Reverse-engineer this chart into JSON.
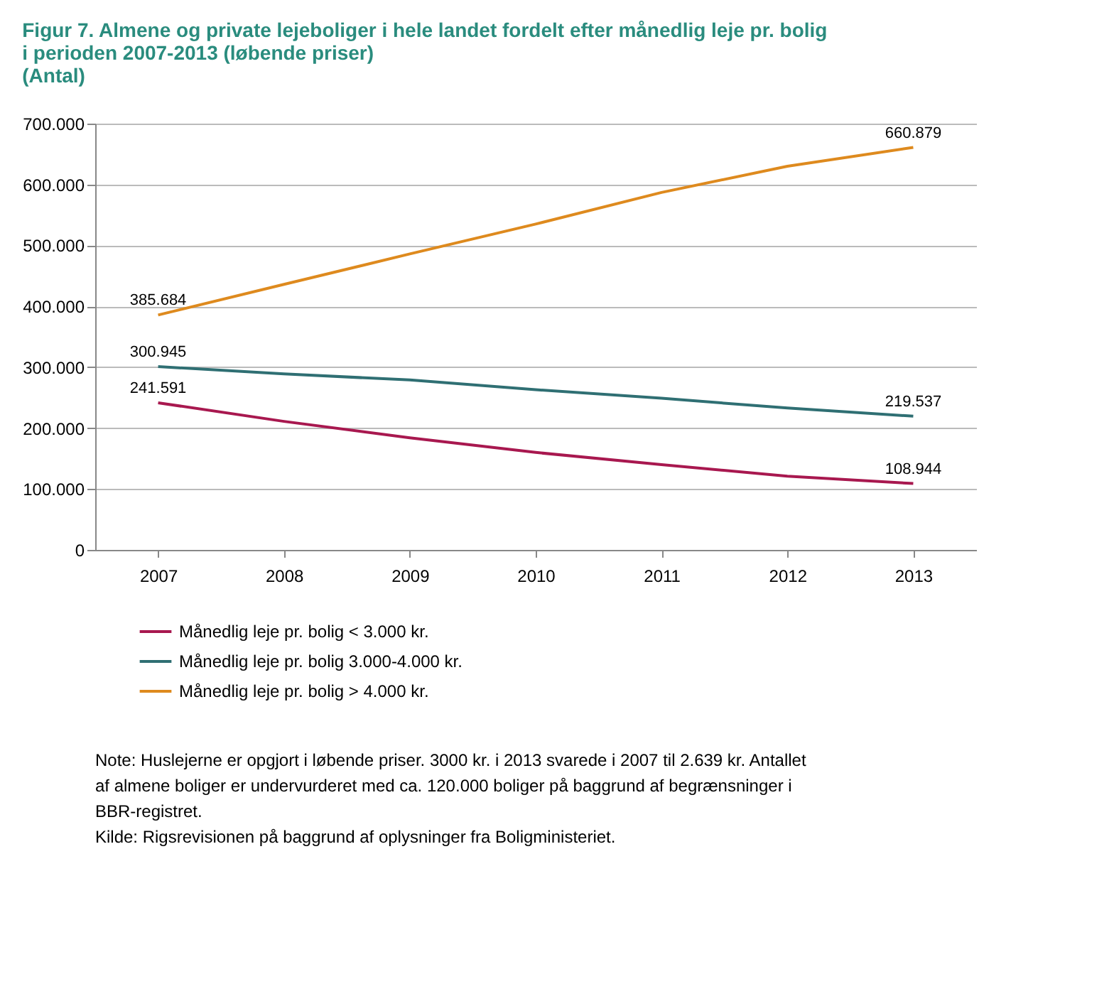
{
  "chart_data": {
    "type": "line",
    "title": [
      "Figur 7. Almene og private lejeboliger i hele landet fordelt efter månedlig leje pr. bolig",
      "i perioden 2007-2013 (løbende priser)",
      "(Antal)"
    ],
    "categories": [
      "2007",
      "2008",
      "2009",
      "2010",
      "2011",
      "2012",
      "2013"
    ],
    "series": [
      {
        "name": "Månedlig leje pr. bolig < 3.000 kr.",
        "color": "#a8184f",
        "values": [
          241591,
          211000,
          184000,
          160000,
          140000,
          121000,
          108944
        ],
        "value_labels": [
          "241.591",
          null,
          null,
          null,
          null,
          null,
          "108.944"
        ]
      },
      {
        "name": "Månedlig leje pr. bolig 3.000-4.000 kr.",
        "color": "#2f6f73",
        "values": [
          300945,
          289000,
          279000,
          263000,
          249000,
          233000,
          219537
        ],
        "value_labels": [
          "300.945",
          null,
          null,
          null,
          null,
          null,
          "219.537"
        ]
      },
      {
        "name": "Månedlig leje pr. bolig > 4.000 kr.",
        "color": "#de8a1e",
        "values": [
          385684,
          436000,
          486000,
          535000,
          587000,
          630000,
          660879
        ],
        "value_labels": [
          "385.684",
          null,
          null,
          null,
          null,
          null,
          "660.879"
        ]
      }
    ],
    "ylim": [
      0,
      700000
    ],
    "yticks": [
      {
        "value": 0,
        "label": "0"
      },
      {
        "value": 100000,
        "label": "100.000"
      },
      {
        "value": 200000,
        "label": "200.000"
      },
      {
        "value": 300000,
        "label": "300.000"
      },
      {
        "value": 400000,
        "label": "400.000"
      },
      {
        "value": 500000,
        "label": "500.000"
      },
      {
        "value": 600000,
        "label": "600.000"
      },
      {
        "value": 700000,
        "label": "700.000"
      }
    ],
    "grid": "y",
    "legend": "bottom",
    "marker": "none",
    "line_style": "solid",
    "annotations": [
      "Note:  Huslejerne er opgjort i løbende priser. 3000 kr. i 2013 svarede i 2007 til 2.639 kr. Antallet af almene boliger er undervurderet med ca. 120.000 boliger på baggrund af begrænsninger i BBR-registret.",
      "Kilde:  Rigsrevisionen på baggrund af oplysninger fra Boligministeriet."
    ]
  }
}
